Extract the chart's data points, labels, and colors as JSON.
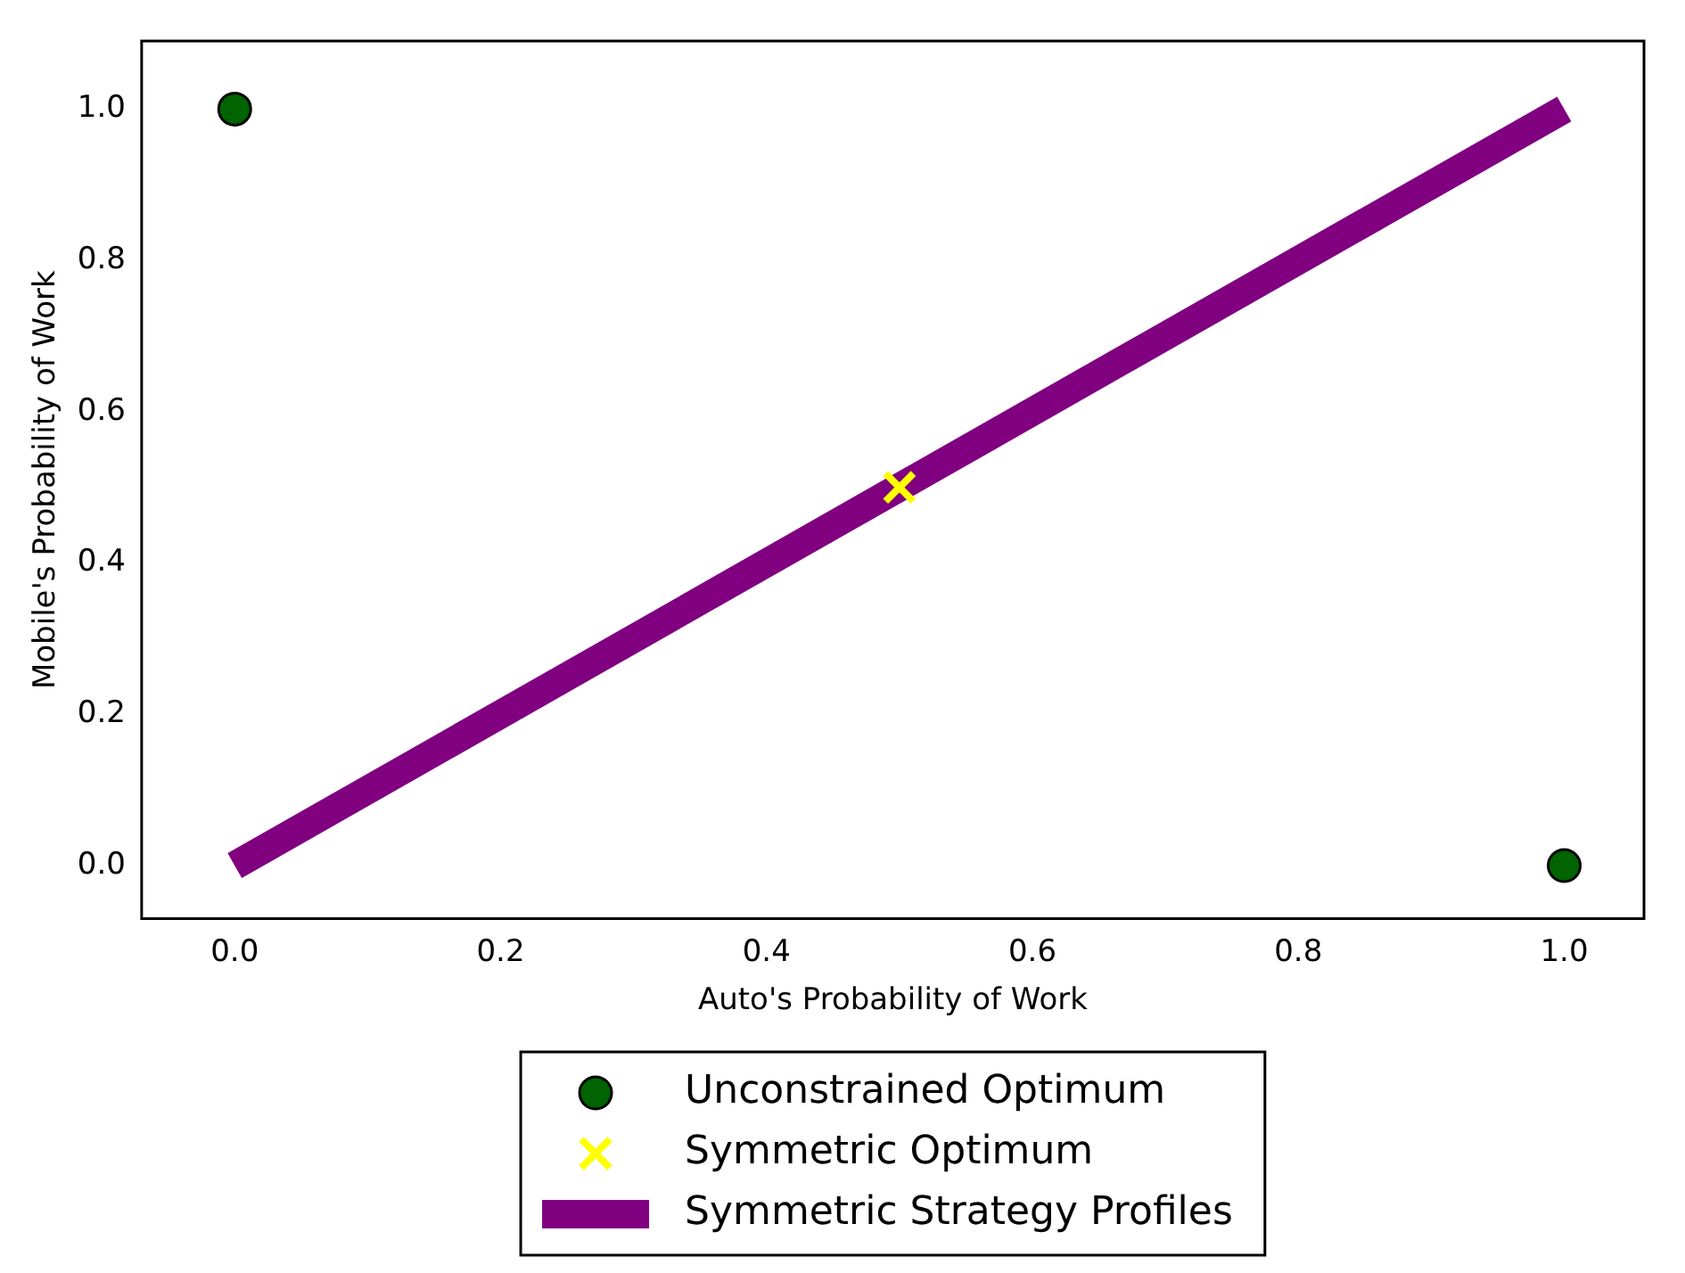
{
  "chart_data": {
    "type": "scatter",
    "xlabel": "Auto's Probability of Work",
    "ylabel": "Mobile's Probability of Work",
    "xlim": [
      -0.07,
      1.06
    ],
    "ylim": [
      -0.07,
      1.09
    ],
    "xticks": [
      {
        "value": 0,
        "label": "0.0"
      },
      {
        "value": 0.2,
        "label": "0.2"
      },
      {
        "value": 0.4,
        "label": "0.4"
      },
      {
        "value": 0.6,
        "label": "0.6"
      },
      {
        "value": 0.8,
        "label": "0.8"
      },
      {
        "value": 1,
        "label": "1.0"
      }
    ],
    "yticks": [
      {
        "value": 0,
        "label": "0.0"
      },
      {
        "value": 0.2,
        "label": "0.2"
      },
      {
        "value": 0.4,
        "label": "0.4"
      },
      {
        "value": 0.6,
        "label": "0.6"
      },
      {
        "value": 0.8,
        "label": "0.8"
      },
      {
        "value": 1,
        "label": "1.0"
      }
    ],
    "grid": false,
    "legend": "bottom",
    "series": [
      {
        "name": "Unconstrained Optimum",
        "type": "scatter",
        "marker": "circle",
        "color": "#006400",
        "x": [
          0,
          1
        ],
        "values": [
          1,
          0
        ]
      },
      {
        "name": "Symmetric Optimum",
        "type": "scatter",
        "marker": "cross",
        "color": "#ffff00",
        "x": [
          0.5
        ],
        "values": [
          0.5
        ]
      },
      {
        "name": "Symmetric Strategy Profiles",
        "type": "line",
        "marker": "none",
        "line_style": "solid",
        "color": "#800080",
        "x": [
          0,
          1
        ],
        "values": [
          0,
          1
        ]
      }
    ]
  }
}
